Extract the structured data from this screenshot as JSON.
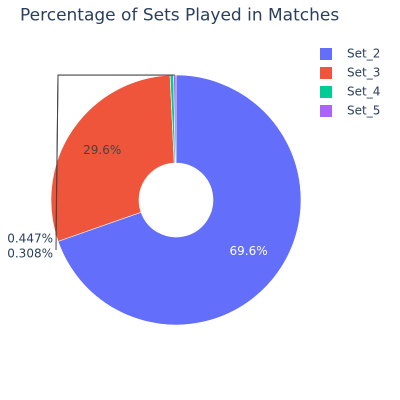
{
  "chart_data": {
    "type": "pie",
    "title": "Percentage of Sets Played in Matches",
    "hole": true,
    "direction": "clockwise",
    "legend_position": "top-right",
    "slices": [
      {
        "name": "Set_2",
        "label": "69.6%",
        "value": 69.6,
        "color": "#636efa",
        "label_color": "#ffffff",
        "label_position": "inside"
      },
      {
        "name": "Set_3",
        "label": "29.6%",
        "value": 29.6,
        "color": "#ef553b",
        "label_color": "#444444",
        "label_position": "inside"
      },
      {
        "name": "Set_4",
        "label": "0.447%",
        "value": 0.447,
        "color": "#00cc96",
        "label_color": "#2a3f5f",
        "label_position": "outside"
      },
      {
        "name": "Set_5",
        "label": "0.308%",
        "value": 0.308,
        "color": "#ab63fa",
        "label_color": "#2a3f5f",
        "label_position": "outside"
      }
    ]
  }
}
